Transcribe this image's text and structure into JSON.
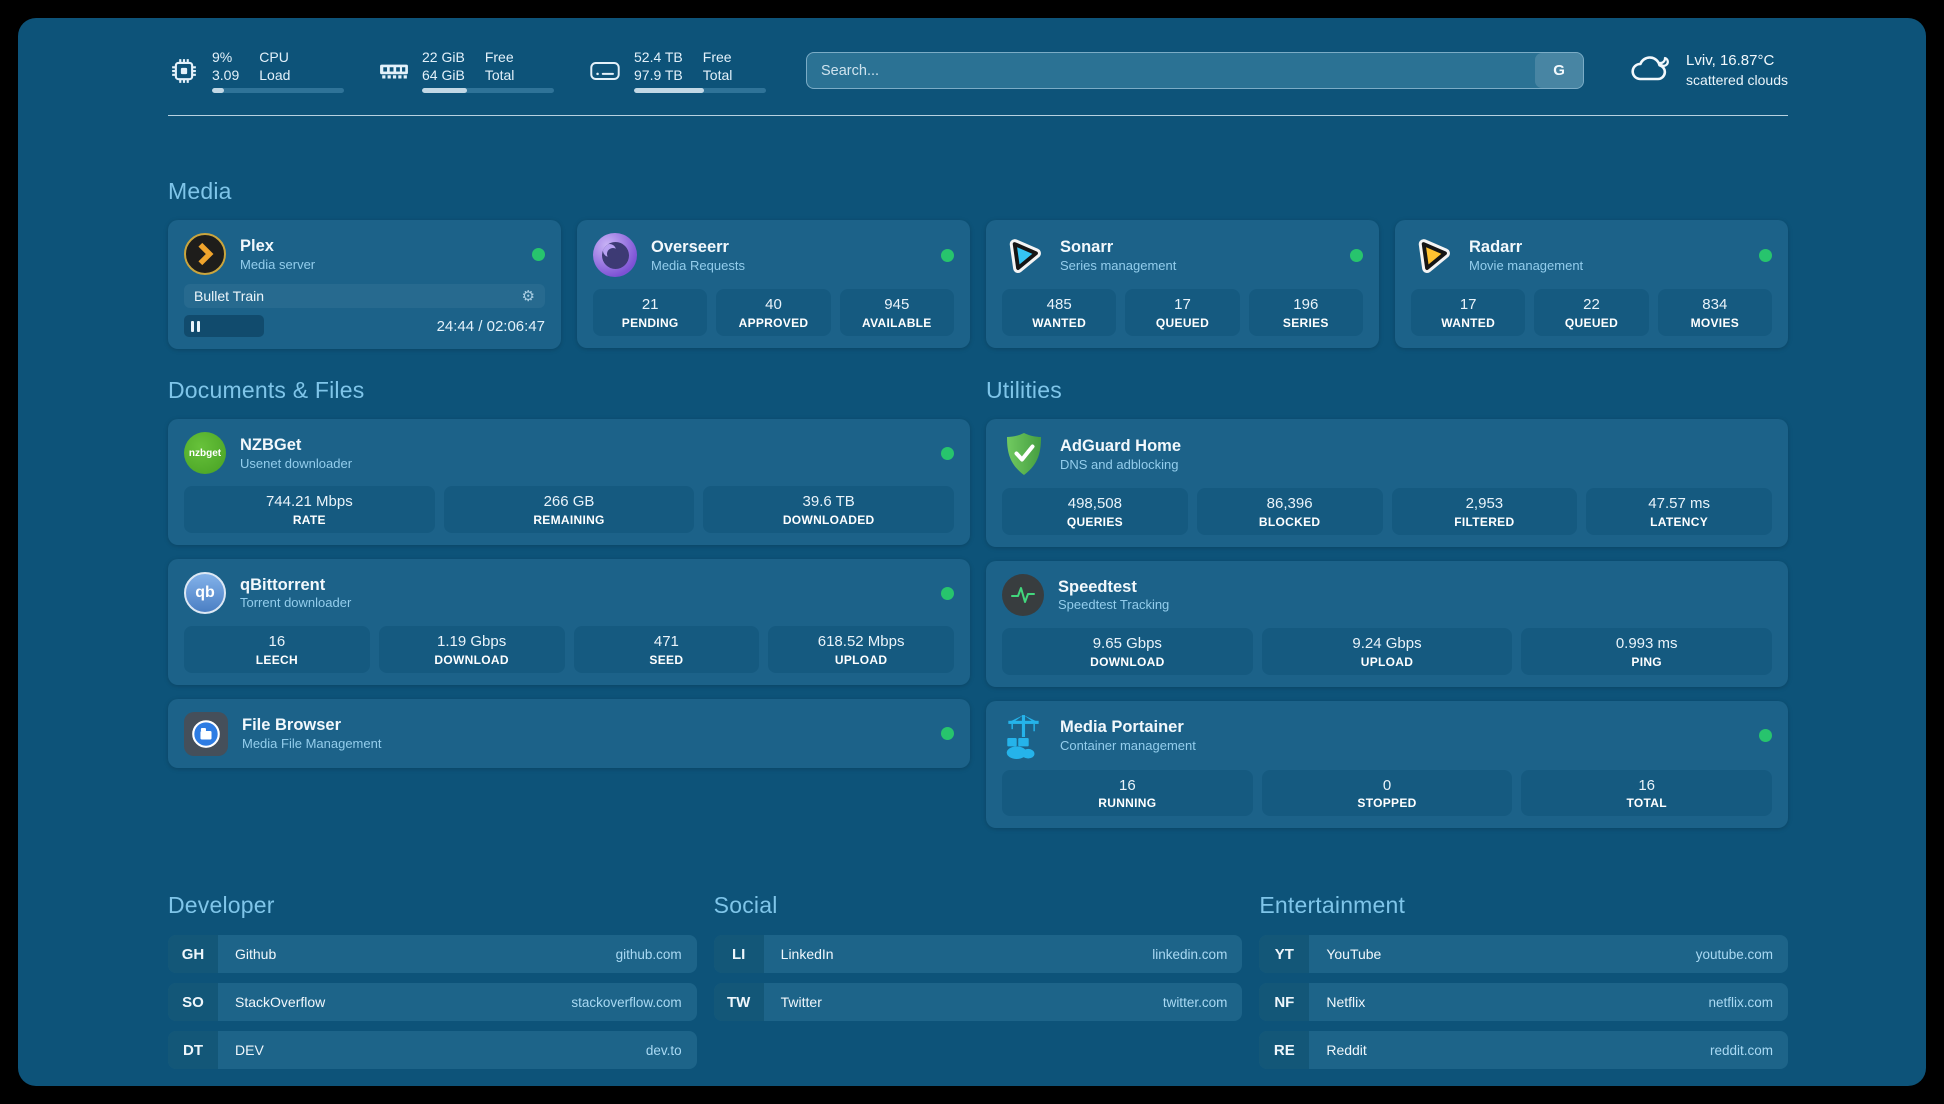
{
  "topbar": {
    "cpu": {
      "value_top": "9%",
      "value_bottom": "3.09",
      "label_top": "CPU",
      "label_bottom": "Load",
      "bar_percent": 9
    },
    "ram": {
      "value_top": "22 GiB",
      "value_bottom": "64 GiB",
      "label_top": "Free",
      "label_bottom": "Total",
      "bar_percent": 34
    },
    "disk": {
      "value_top": "52.4 TB",
      "value_bottom": "97.9 TB",
      "label_top": "Free",
      "label_bottom": "Total",
      "bar_percent": 53
    },
    "search": {
      "placeholder": "Search...",
      "button_label": "G"
    },
    "weather": {
      "location_temp": "Lviv, 16.87°C",
      "condition": "scattered clouds"
    }
  },
  "section_titles": {
    "media": "Media",
    "documents": "Documents & Files",
    "utilities": "Utilities",
    "developer": "Developer",
    "social": "Social",
    "entertainment": "Entertainment"
  },
  "apps": {
    "plex": {
      "title": "Plex",
      "subtitle": "Media server",
      "player": {
        "now_playing": "Bullet Train",
        "time_display": "24:44 / 02:06:47"
      }
    },
    "overseerr": {
      "title": "Overseerr",
      "subtitle": "Media Requests",
      "stats": [
        {
          "value": "21",
          "label": "PENDING"
        },
        {
          "value": "40",
          "label": "APPROVED"
        },
        {
          "value": "945",
          "label": "AVAILABLE"
        }
      ]
    },
    "sonarr": {
      "title": "Sonarr",
      "subtitle": "Series management",
      "stats": [
        {
          "value": "485",
          "label": "WANTED"
        },
        {
          "value": "17",
          "label": "QUEUED"
        },
        {
          "value": "196",
          "label": "SERIES"
        }
      ]
    },
    "radarr": {
      "title": "Radarr",
      "subtitle": "Movie management",
      "stats": [
        {
          "value": "17",
          "label": "WANTED"
        },
        {
          "value": "22",
          "label": "QUEUED"
        },
        {
          "value": "834",
          "label": "MOVIES"
        }
      ]
    },
    "nzbget": {
      "title": "NZBGet",
      "subtitle": "Usenet downloader",
      "icon_text": "nzbget",
      "stats": [
        {
          "value": "744.21 Mbps",
          "label": "RATE"
        },
        {
          "value": "266 GB",
          "label": "REMAINING"
        },
        {
          "value": "39.6 TB",
          "label": "DOWNLOADED"
        }
      ]
    },
    "qbittorrent": {
      "title": "qBittorrent",
      "subtitle": "Torrent downloader",
      "icon_text": "qb",
      "stats": [
        {
          "value": "16",
          "label": "LEECH"
        },
        {
          "value": "1.19 Gbps",
          "label": "DOWNLOAD"
        },
        {
          "value": "471",
          "label": "SEED"
        },
        {
          "value": "618.52 Mbps",
          "label": "UPLOAD"
        }
      ]
    },
    "filebrowser": {
      "title": "File Browser",
      "subtitle": "Media File Management"
    },
    "adguard": {
      "title": "AdGuard Home",
      "subtitle": "DNS and adblocking",
      "stats": [
        {
          "value": "498,508",
          "label": "QUERIES"
        },
        {
          "value": "86,396",
          "label": "BLOCKED"
        },
        {
          "value": "2,953",
          "label": "FILTERED"
        },
        {
          "value": "47.57 ms",
          "label": "LATENCY"
        }
      ]
    },
    "speedtest": {
      "title": "Speedtest",
      "subtitle": "Speedtest Tracking",
      "stats": [
        {
          "value": "9.65 Gbps",
          "label": "DOWNLOAD"
        },
        {
          "value": "9.24 Gbps",
          "label": "UPLOAD"
        },
        {
          "value": "0.993 ms",
          "label": "PING"
        }
      ]
    },
    "portainer": {
      "title": "Media Portainer",
      "subtitle": "Container management",
      "stats": [
        {
          "value": "16",
          "label": "RUNNING"
        },
        {
          "value": "0",
          "label": "STOPPED"
        },
        {
          "value": "16",
          "label": "TOTAL"
        }
      ]
    }
  },
  "bookmarks": {
    "developer": [
      {
        "abbr": "GH",
        "name": "Github",
        "url": "github.com"
      },
      {
        "abbr": "SO",
        "name": "StackOverflow",
        "url": "stackoverflow.com"
      },
      {
        "abbr": "DT",
        "name": "DEV",
        "url": "dev.to"
      }
    ],
    "social": [
      {
        "abbr": "LI",
        "name": "LinkedIn",
        "url": "linkedin.com"
      },
      {
        "abbr": "TW",
        "name": "Twitter",
        "url": "twitter.com"
      }
    ],
    "entertainment": [
      {
        "abbr": "YT",
        "name": "YouTube",
        "url": "youtube.com"
      },
      {
        "abbr": "NF",
        "name": "Netflix",
        "url": "netflix.com"
      },
      {
        "abbr": "RE",
        "name": "Reddit",
        "url": "reddit.com"
      }
    ]
  },
  "colors": {
    "accent": "#7fc5e9",
    "status_online": "#27c46d",
    "background": "#0d5379",
    "card": "#1c6289"
  }
}
